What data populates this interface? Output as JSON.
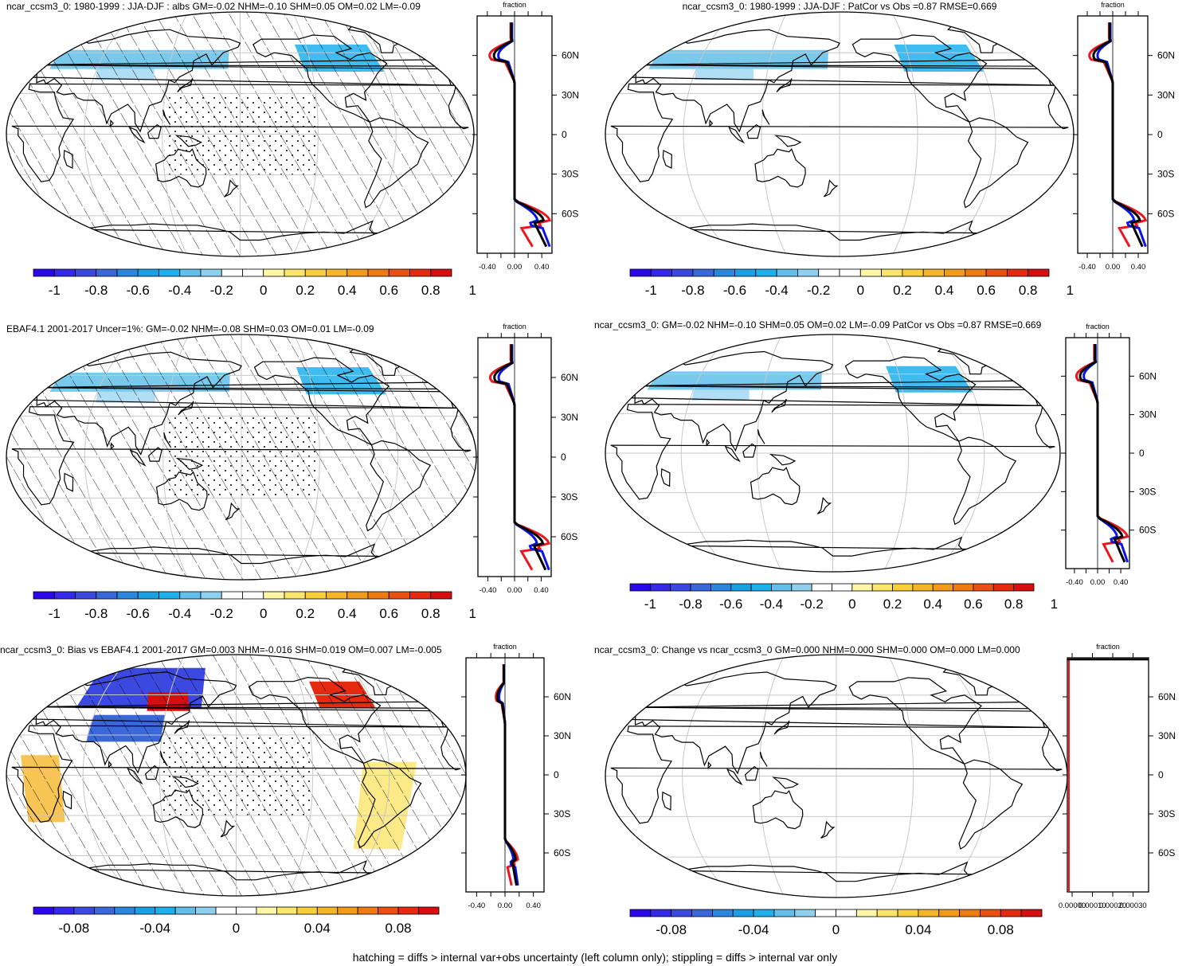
{
  "colors": {
    "ocean": "#ffffff",
    "land_line": "#000000",
    "grid": "#c8c8c8",
    "line_red": "#e8191e",
    "line_blue": "#0a14e6",
    "line_black": "#000000",
    "palette": [
      "#2a08ea",
      "#3528e8",
      "#3b49e0",
      "#3a68db",
      "#2a86df",
      "#199fe6",
      "#1cb0ec",
      "#61bfea",
      "#8fd0ef",
      "#ffffff",
      "#ffffff",
      "#fff6a8",
      "#fbe56a",
      "#f7cf3a",
      "#f4b628",
      "#f29a1a",
      "#ef7a10",
      "#ea5010",
      "#e52a10",
      "#d70e10"
    ]
  },
  "footer": "hatching = diffs > internal var+obs uncertainty (left column only); stippling = diffs > internal var only",
  "panels": [
    {
      "id": "p1",
      "title": "ncar_ccsm3_0: 1980-1999 : JJA-DJF : albs GM=-0.02 NHM=-0.10 SHM=0.05 OM=0.02 LM=-0.09",
      "map_fill": "clim",
      "hatched": true,
      "profile_label": "fraction",
      "profile_xticks": [
        "-0.40",
        "0.00",
        "0.40"
      ],
      "lat_labels": [
        "60N",
        "30N",
        "0",
        "30S",
        "60S"
      ],
      "colorbar_labels": [
        "-1",
        "-0.8",
        "-0.6",
        "-0.4",
        "-0.2",
        "0",
        "0.2",
        "0.4",
        "0.6",
        "0.8",
        "1"
      ]
    },
    {
      "id": "p2",
      "title": "ncar_ccsm3_0: 1980-1999 : JJA-DJF : PatCor vs Obs =0.87 RMSE=0.669",
      "map_fill": "clim",
      "hatched": false,
      "profile_label": "fraction",
      "profile_xticks": [
        "-0.40",
        "0.00",
        "0.40"
      ],
      "lat_labels": [
        "60N",
        "30N",
        "0",
        "30S",
        "60S"
      ],
      "colorbar_labels": [
        "-1",
        "-0.8",
        "-0.6",
        "-0.4",
        "-0.2",
        "0",
        "0.2",
        "0.4",
        "0.6",
        "0.8",
        "1"
      ]
    },
    {
      "id": "p3",
      "title": "EBAF4.1 2001-2017 Uncer=1%: GM=-0.02 NHM=-0.08 SHM=0.03 OM=0.01 LM=-0.09",
      "map_fill": "clim",
      "hatched": true,
      "profile_label": "fraction",
      "profile_xticks": [
        "-0.40",
        "0.00",
        "0.40"
      ],
      "lat_labels": [
        "60N",
        "30N",
        "0",
        "30S",
        "60S"
      ],
      "colorbar_labels": [
        "-1",
        "-0.8",
        "-0.6",
        "-0.4",
        "-0.2",
        "0",
        "0.2",
        "0.4",
        "0.6",
        "0.8",
        "1"
      ]
    },
    {
      "id": "p4",
      "title": "ncar_ccsm3_0: GM=-0.02 NHM=-0.10 SHM=0.05 OM=0.02 LM=-0.09 PatCor vs Obs =0.87 RMSE=0.669",
      "map_fill": "clim",
      "hatched": false,
      "profile_label": "fraction",
      "profile_xticks": [
        "-0.40",
        "0.00",
        "0.40"
      ],
      "lat_labels": [
        "60N",
        "30N",
        "0",
        "30S",
        "60S"
      ],
      "colorbar_labels": [
        "-1",
        "-0.8",
        "-0.6",
        "-0.4",
        "-0.2",
        "0",
        "0.2",
        "0.4",
        "0.6",
        "0.8",
        "1"
      ]
    },
    {
      "id": "p5",
      "title": "ncar_ccsm3_0: Bias vs EBAF4.1 2001-2017 GM=0.003 NHM=-0.016 SHM=0.019 OM=0.007 LM=-0.005",
      "map_fill": "bias",
      "hatched": true,
      "profile_label": "fraction",
      "profile_xticks": [
        "-0.40",
        "0.00",
        "0.40"
      ],
      "lat_labels": [
        "60N",
        "30N",
        "0",
        "30S",
        "60S"
      ],
      "colorbar_labels": [
        "-0.08",
        "-0.04",
        "0",
        "0.04",
        "0.08"
      ]
    },
    {
      "id": "p6",
      "title": "ncar_ccsm3_0: Change vs ncar_ccsm3_0 GM=0.000 NHM=0.000 SHM=0.000 OM=0.000 LM=0.000",
      "map_fill": "none",
      "hatched": false,
      "profile_label": "fraction",
      "profile_xticks": [
        "0.00000",
        "0.00010",
        "0.00020",
        "0.00030"
      ],
      "lat_labels": [
        "60N",
        "30N",
        "0",
        "30S",
        "60S"
      ],
      "colorbar_labels": [
        "-0.08",
        "-0.04",
        "0",
        "0.04",
        "0.08"
      ]
    }
  ]
}
